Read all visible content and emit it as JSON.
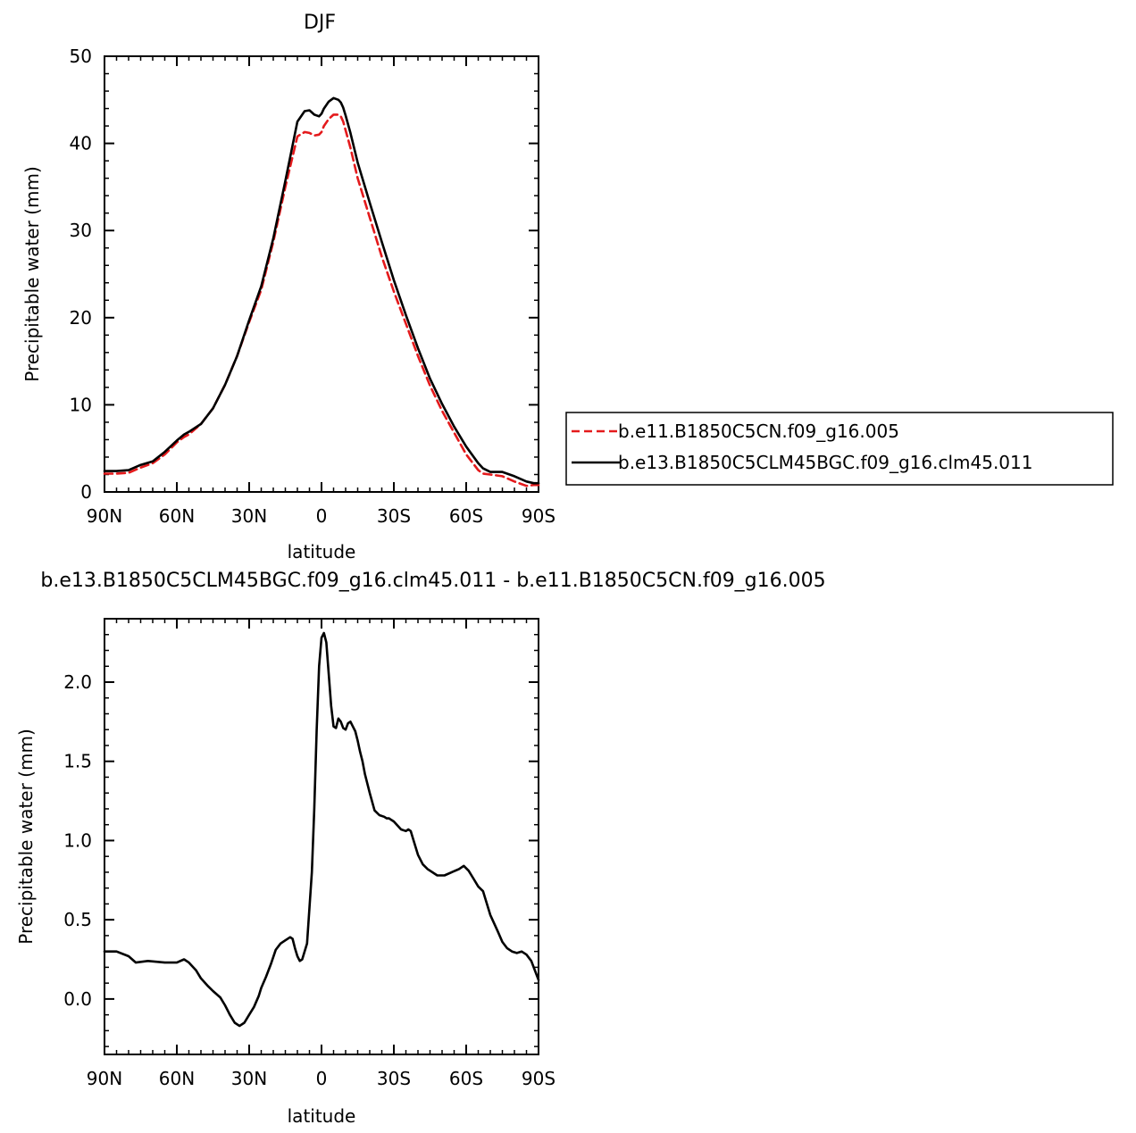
{
  "chart_data": [
    {
      "type": "line",
      "title": "DJF",
      "xlabel": "latitude",
      "ylabel": "Precipitable water (mm)",
      "xlim": [
        90,
        -90
      ],
      "ylim": [
        0,
        50
      ],
      "xticks": [
        {
          "value": 90,
          "label": "90N"
        },
        {
          "value": 60,
          "label": "60N"
        },
        {
          "value": 30,
          "label": "30N"
        },
        {
          "value": 0,
          "label": "0"
        },
        {
          "value": -30,
          "label": "30S"
        },
        {
          "value": -60,
          "label": "60S"
        },
        {
          "value": -90,
          "label": "90S"
        }
      ],
      "yticks": [
        {
          "value": 0,
          "label": "0"
        },
        {
          "value": 10,
          "label": "10"
        },
        {
          "value": 20,
          "label": "20"
        },
        {
          "value": 30,
          "label": "30"
        },
        {
          "value": 40,
          "label": "40"
        },
        {
          "value": 50,
          "label": "50"
        }
      ],
      "legend_position": "right",
      "series": [
        {
          "name": "b.e11.B1850C5CN.f09_g16.005",
          "color": "#e41a1c",
          "dash": "dashed",
          "x": [
            90,
            85,
            80,
            75,
            70,
            65,
            60,
            57,
            55,
            50,
            45,
            40,
            35,
            30,
            25,
            20,
            15,
            10,
            7,
            5,
            3,
            1,
            0,
            -1,
            -3,
            -5,
            -7,
            -8,
            -9,
            -10,
            -12,
            -15,
            -20,
            -25,
            -30,
            -35,
            -40,
            -45,
            -50,
            -55,
            -60,
            -65,
            -67,
            -70,
            -75,
            -80,
            -85,
            -88,
            -90
          ],
          "y": [
            2.1,
            2.1,
            2.2,
            2.8,
            3.3,
            4.3,
            5.7,
            6.3,
            6.6,
            7.8,
            9.6,
            12.3,
            15.6,
            19.5,
            23.2,
            28.7,
            35.0,
            40.8,
            41.3,
            41.2,
            40.9,
            41.0,
            41.3,
            42.0,
            42.8,
            43.3,
            43.3,
            43.1,
            42.5,
            41.5,
            39.5,
            36.0,
            31.5,
            27.0,
            23.0,
            19.3,
            15.6,
            12.2,
            9.3,
            6.8,
            4.3,
            2.5,
            2.1,
            2.0,
            1.8,
            1.2,
            0.7,
            0.8,
            0.8
          ]
        },
        {
          "name": "b.e13.B1850C5CLM45BGC.f09_g16.clm45.011",
          "color": "#000000",
          "dash": "solid",
          "x": [
            90,
            85,
            80,
            75,
            70,
            65,
            60,
            57,
            55,
            50,
            45,
            40,
            35,
            30,
            25,
            20,
            15,
            10,
            7,
            5,
            3,
            1,
            0,
            -1,
            -3,
            -5,
            -7,
            -8,
            -9,
            -10,
            -12,
            -15,
            -20,
            -25,
            -30,
            -35,
            -40,
            -45,
            -50,
            -55,
            -60,
            -65,
            -67,
            -70,
            -75,
            -80,
            -85,
            -88,
            -90
          ],
          "y": [
            2.4,
            2.4,
            2.5,
            3.1,
            3.5,
            4.6,
            5.9,
            6.6,
            6.9,
            7.8,
            9.6,
            12.3,
            15.6,
            19.7,
            23.6,
            29.1,
            35.7,
            42.5,
            43.7,
            43.8,
            43.3,
            43.1,
            43.4,
            44.0,
            44.8,
            45.2,
            45.0,
            44.7,
            44.1,
            43.2,
            41.2,
            37.8,
            33.2,
            28.7,
            24.3,
            20.3,
            16.5,
            13.0,
            10.1,
            7.5,
            5.2,
            3.3,
            2.7,
            2.3,
            2.3,
            1.8,
            1.2,
            1.0,
            1.0
          ]
        }
      ]
    },
    {
      "type": "line",
      "title": "b.e13.B1850C5CLM45BGC.f09_g16.clm45.011 - b.e11.B1850C5CN.f09_g16.005",
      "xlabel": "latitude",
      "ylabel": "Precipitable water (mm)",
      "xlim": [
        90,
        -90
      ],
      "ylim": [
        -0.35,
        2.4
      ],
      "xticks": [
        {
          "value": 90,
          "label": "90N"
        },
        {
          "value": 60,
          "label": "60N"
        },
        {
          "value": 30,
          "label": "30N"
        },
        {
          "value": 0,
          "label": "0"
        },
        {
          "value": -30,
          "label": "30S"
        },
        {
          "value": -60,
          "label": "60S"
        },
        {
          "value": -90,
          "label": "90S"
        }
      ],
      "yticks": [
        {
          "value": 0.0,
          "label": "0.0"
        },
        {
          "value": 0.5,
          "label": "0.5"
        },
        {
          "value": 1.0,
          "label": "1.0"
        },
        {
          "value": 1.5,
          "label": "1.5"
        },
        {
          "value": 2.0,
          "label": "2.0"
        }
      ],
      "series": [
        {
          "color": "#000000",
          "dash": "solid",
          "x": [
            90,
            85,
            80,
            77,
            72,
            65,
            60,
            57,
            55,
            52,
            50,
            47,
            45,
            42,
            40,
            38,
            36,
            34,
            32,
            30,
            28,
            26,
            25,
            23,
            21,
            19,
            17,
            15,
            13,
            12,
            11,
            10,
            9,
            8,
            6,
            4,
            3,
            2,
            1,
            0,
            -1,
            -2,
            -3,
            -4,
            -5,
            -6,
            -7,
            -8,
            -9,
            -10,
            -11,
            -12,
            -13,
            -14,
            -15,
            -16,
            -17,
            -18,
            -20,
            -22,
            -24,
            -26,
            -27,
            -28,
            -29,
            -30,
            -33,
            -35,
            -36,
            -37,
            -38,
            -40,
            -42,
            -44,
            -48,
            -51,
            -54,
            -57,
            -59,
            -61,
            -63,
            -65,
            -67,
            -70,
            -73,
            -75,
            -77,
            -79,
            -81,
            -83,
            -85,
            -87,
            -89,
            -90
          ],
          "y": [
            0.3,
            0.3,
            0.27,
            0.23,
            0.24,
            0.23,
            0.23,
            0.25,
            0.23,
            0.18,
            0.13,
            0.08,
            0.05,
            0.01,
            -0.04,
            -0.1,
            -0.15,
            -0.17,
            -0.15,
            -0.1,
            -0.05,
            0.02,
            0.07,
            0.14,
            0.22,
            0.31,
            0.35,
            0.37,
            0.39,
            0.38,
            0.32,
            0.27,
            0.24,
            0.25,
            0.35,
            0.8,
            1.2,
            1.7,
            2.1,
            2.28,
            2.31,
            2.25,
            2.05,
            1.85,
            1.72,
            1.71,
            1.77,
            1.75,
            1.71,
            1.7,
            1.74,
            1.75,
            1.72,
            1.69,
            1.63,
            1.56,
            1.5,
            1.42,
            1.3,
            1.19,
            1.16,
            1.15,
            1.14,
            1.14,
            1.13,
            1.12,
            1.07,
            1.06,
            1.07,
            1.06,
            1.01,
            0.91,
            0.85,
            0.82,
            0.78,
            0.78,
            0.8,
            0.82,
            0.84,
            0.81,
            0.76,
            0.71,
            0.68,
            0.53,
            0.43,
            0.36,
            0.32,
            0.3,
            0.29,
            0.3,
            0.28,
            0.24,
            0.16,
            0.12
          ]
        }
      ]
    }
  ]
}
